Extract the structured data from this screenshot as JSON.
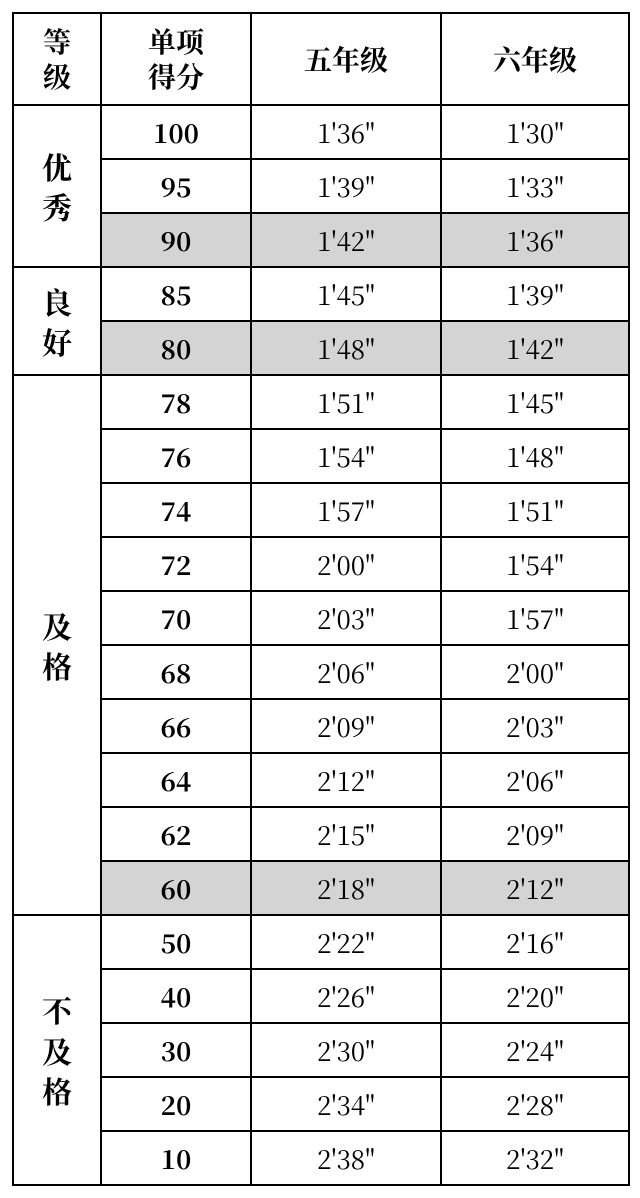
{
  "table": {
    "headers": {
      "grade": "等\n级",
      "score": "单项\n得分",
      "g5": "五年级",
      "g6": "六年级"
    },
    "groups": [
      {
        "label": "优\n秀",
        "rows": [
          {
            "score": "100",
            "g5": "1'36\"",
            "g6": "1'30\"",
            "shaded": false
          },
          {
            "score": "95",
            "g5": "1'39\"",
            "g6": "1'33\"",
            "shaded": false
          },
          {
            "score": "90",
            "g5": "1'42\"",
            "g6": "1'36\"",
            "shaded": true
          }
        ]
      },
      {
        "label": "良\n好",
        "rows": [
          {
            "score": "85",
            "g5": "1'45\"",
            "g6": "1'39\"",
            "shaded": false
          },
          {
            "score": "80",
            "g5": "1'48\"",
            "g6": "1'42\"",
            "shaded": true
          }
        ]
      },
      {
        "label": "及\n格",
        "rows": [
          {
            "score": "78",
            "g5": "1'51\"",
            "g6": "1'45\"",
            "shaded": false
          },
          {
            "score": "76",
            "g5": "1'54\"",
            "g6": "1'48\"",
            "shaded": false
          },
          {
            "score": "74",
            "g5": "1'57\"",
            "g6": "1'51\"",
            "shaded": false
          },
          {
            "score": "72",
            "g5": "2'00\"",
            "g6": "1'54\"",
            "shaded": false
          },
          {
            "score": "70",
            "g5": "2'03\"",
            "g6": "1'57\"",
            "shaded": false
          },
          {
            "score": "68",
            "g5": "2'06\"",
            "g6": "2'00\"",
            "shaded": false
          },
          {
            "score": "66",
            "g5": "2'09\"",
            "g6": "2'03\"",
            "shaded": false
          },
          {
            "score": "64",
            "g5": "2'12\"",
            "g6": "2'06\"",
            "shaded": false
          },
          {
            "score": "62",
            "g5": "2'15\"",
            "g6": "2'09\"",
            "shaded": false
          },
          {
            "score": "60",
            "g5": "2'18\"",
            "g6": "2'12\"",
            "shaded": true
          }
        ]
      },
      {
        "label": "不\n及\n格",
        "rows": [
          {
            "score": "50",
            "g5": "2'22\"",
            "g6": "2'16\"",
            "shaded": false
          },
          {
            "score": "40",
            "g5": "2'26\"",
            "g6": "2'20\"",
            "shaded": false
          },
          {
            "score": "30",
            "g5": "2'30\"",
            "g6": "2'24\"",
            "shaded": false
          },
          {
            "score": "20",
            "g5": "2'34\"",
            "g6": "2'28\"",
            "shaded": false
          },
          {
            "score": "10",
            "g5": "2'38\"",
            "g6": "2'32\"",
            "shaded": false
          }
        ]
      }
    ]
  },
  "style": {
    "shaded_bg": "#d4d4d4",
    "border_color": "#000000",
    "font_family": "serif",
    "header_fontsize": 28,
    "cell_fontsize": 26
  }
}
